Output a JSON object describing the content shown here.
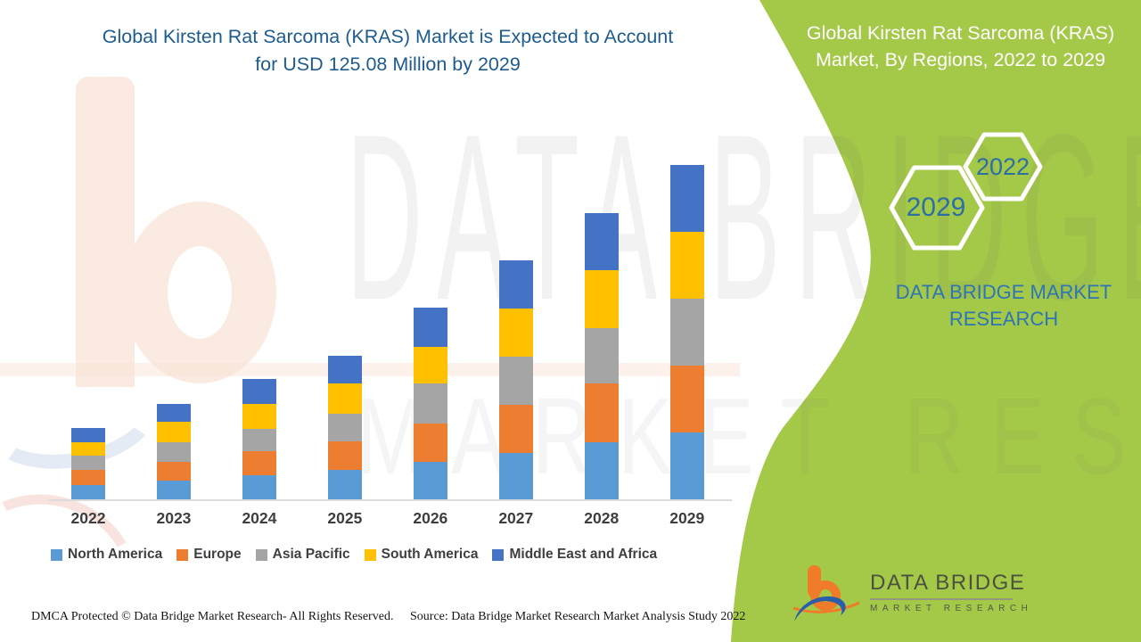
{
  "main_title": "Global Kirsten Rat Sarcoma (KRAS) Market is Expected to Account for USD 125.08 Million by 2029",
  "side_panel": {
    "title": "Global Kirsten Rat Sarcoma (KRAS) Market, By Regions, 2022 to 2029",
    "hexagon_year_big": "2029",
    "hexagon_year_small": "2022",
    "brand_line1": "DATA BRIDGE MARKET",
    "brand_line2": "RESEARCH"
  },
  "logo": {
    "name": "DATA BRIDGE",
    "subtitle": "MARKET RESEARCH"
  },
  "watermark": {
    "text_large": "DATA BRIDGE",
    "text_small": "MARKET RESEARCH"
  },
  "footer": {
    "dmca": "DMCA Protected © Data Bridge Market Research- All Rights Reserved.",
    "source": "Source: Data Bridge Market Research Market Analysis Study 2022"
  },
  "colors": {
    "panel_green": "#a4c848",
    "title_blue": "#1d5c8d",
    "brand_blue": "#2e75b6",
    "hexagon_year_blue": "#2b6fa3",
    "logo_orange": "#f07b28",
    "logo_blue": "#2b5da8"
  },
  "chart_data": {
    "type": "bar",
    "stacked": true,
    "title": "Global Kirsten Rat Sarcoma (KRAS) Market is Expected to Account for USD 125.08 Million by 2029",
    "unit": "USD Million",
    "xlabel": "",
    "ylabel": "",
    "grid": false,
    "value_axis_hidden": true,
    "legend_position": "bottom",
    "ylim": [
      0,
      130
    ],
    "categories": [
      "2022",
      "2023",
      "2024",
      "2025",
      "2026",
      "2027",
      "2028",
      "2029"
    ],
    "series": [
      {
        "name": "North America",
        "color": "#5B9BD5",
        "values": [
          5.2,
          7.1,
          9.0,
          11.1,
          14.1,
          17.5,
          21.4,
          25.1
        ]
      },
      {
        "name": "Europe",
        "color": "#ED7D31",
        "values": [
          5.9,
          7.0,
          9.1,
          10.5,
          14.4,
          17.8,
          22.0,
          25.0
        ]
      },
      {
        "name": "Asia Pacific",
        "color": "#A5A5A5",
        "values": [
          5.3,
          7.3,
          8.4,
          10.6,
          14.8,
          18.2,
          20.6,
          25.0
        ]
      },
      {
        "name": "South America",
        "color": "#FFC000",
        "values": [
          5.0,
          7.7,
          9.3,
          11.1,
          13.6,
          17.9,
          21.6,
          25.0
        ]
      },
      {
        "name": "Middle East and Africa",
        "color": "#4472C4",
        "values": [
          5.2,
          6.7,
          9.1,
          10.5,
          14.7,
          18.0,
          21.4,
          25.0
        ]
      }
    ],
    "totals_by_year": [
      26.6,
      35.8,
      44.9,
      53.8,
      71.6,
      89.4,
      107.0,
      125.08
    ],
    "highlight_value_2029": "USD 125.08 Million"
  }
}
